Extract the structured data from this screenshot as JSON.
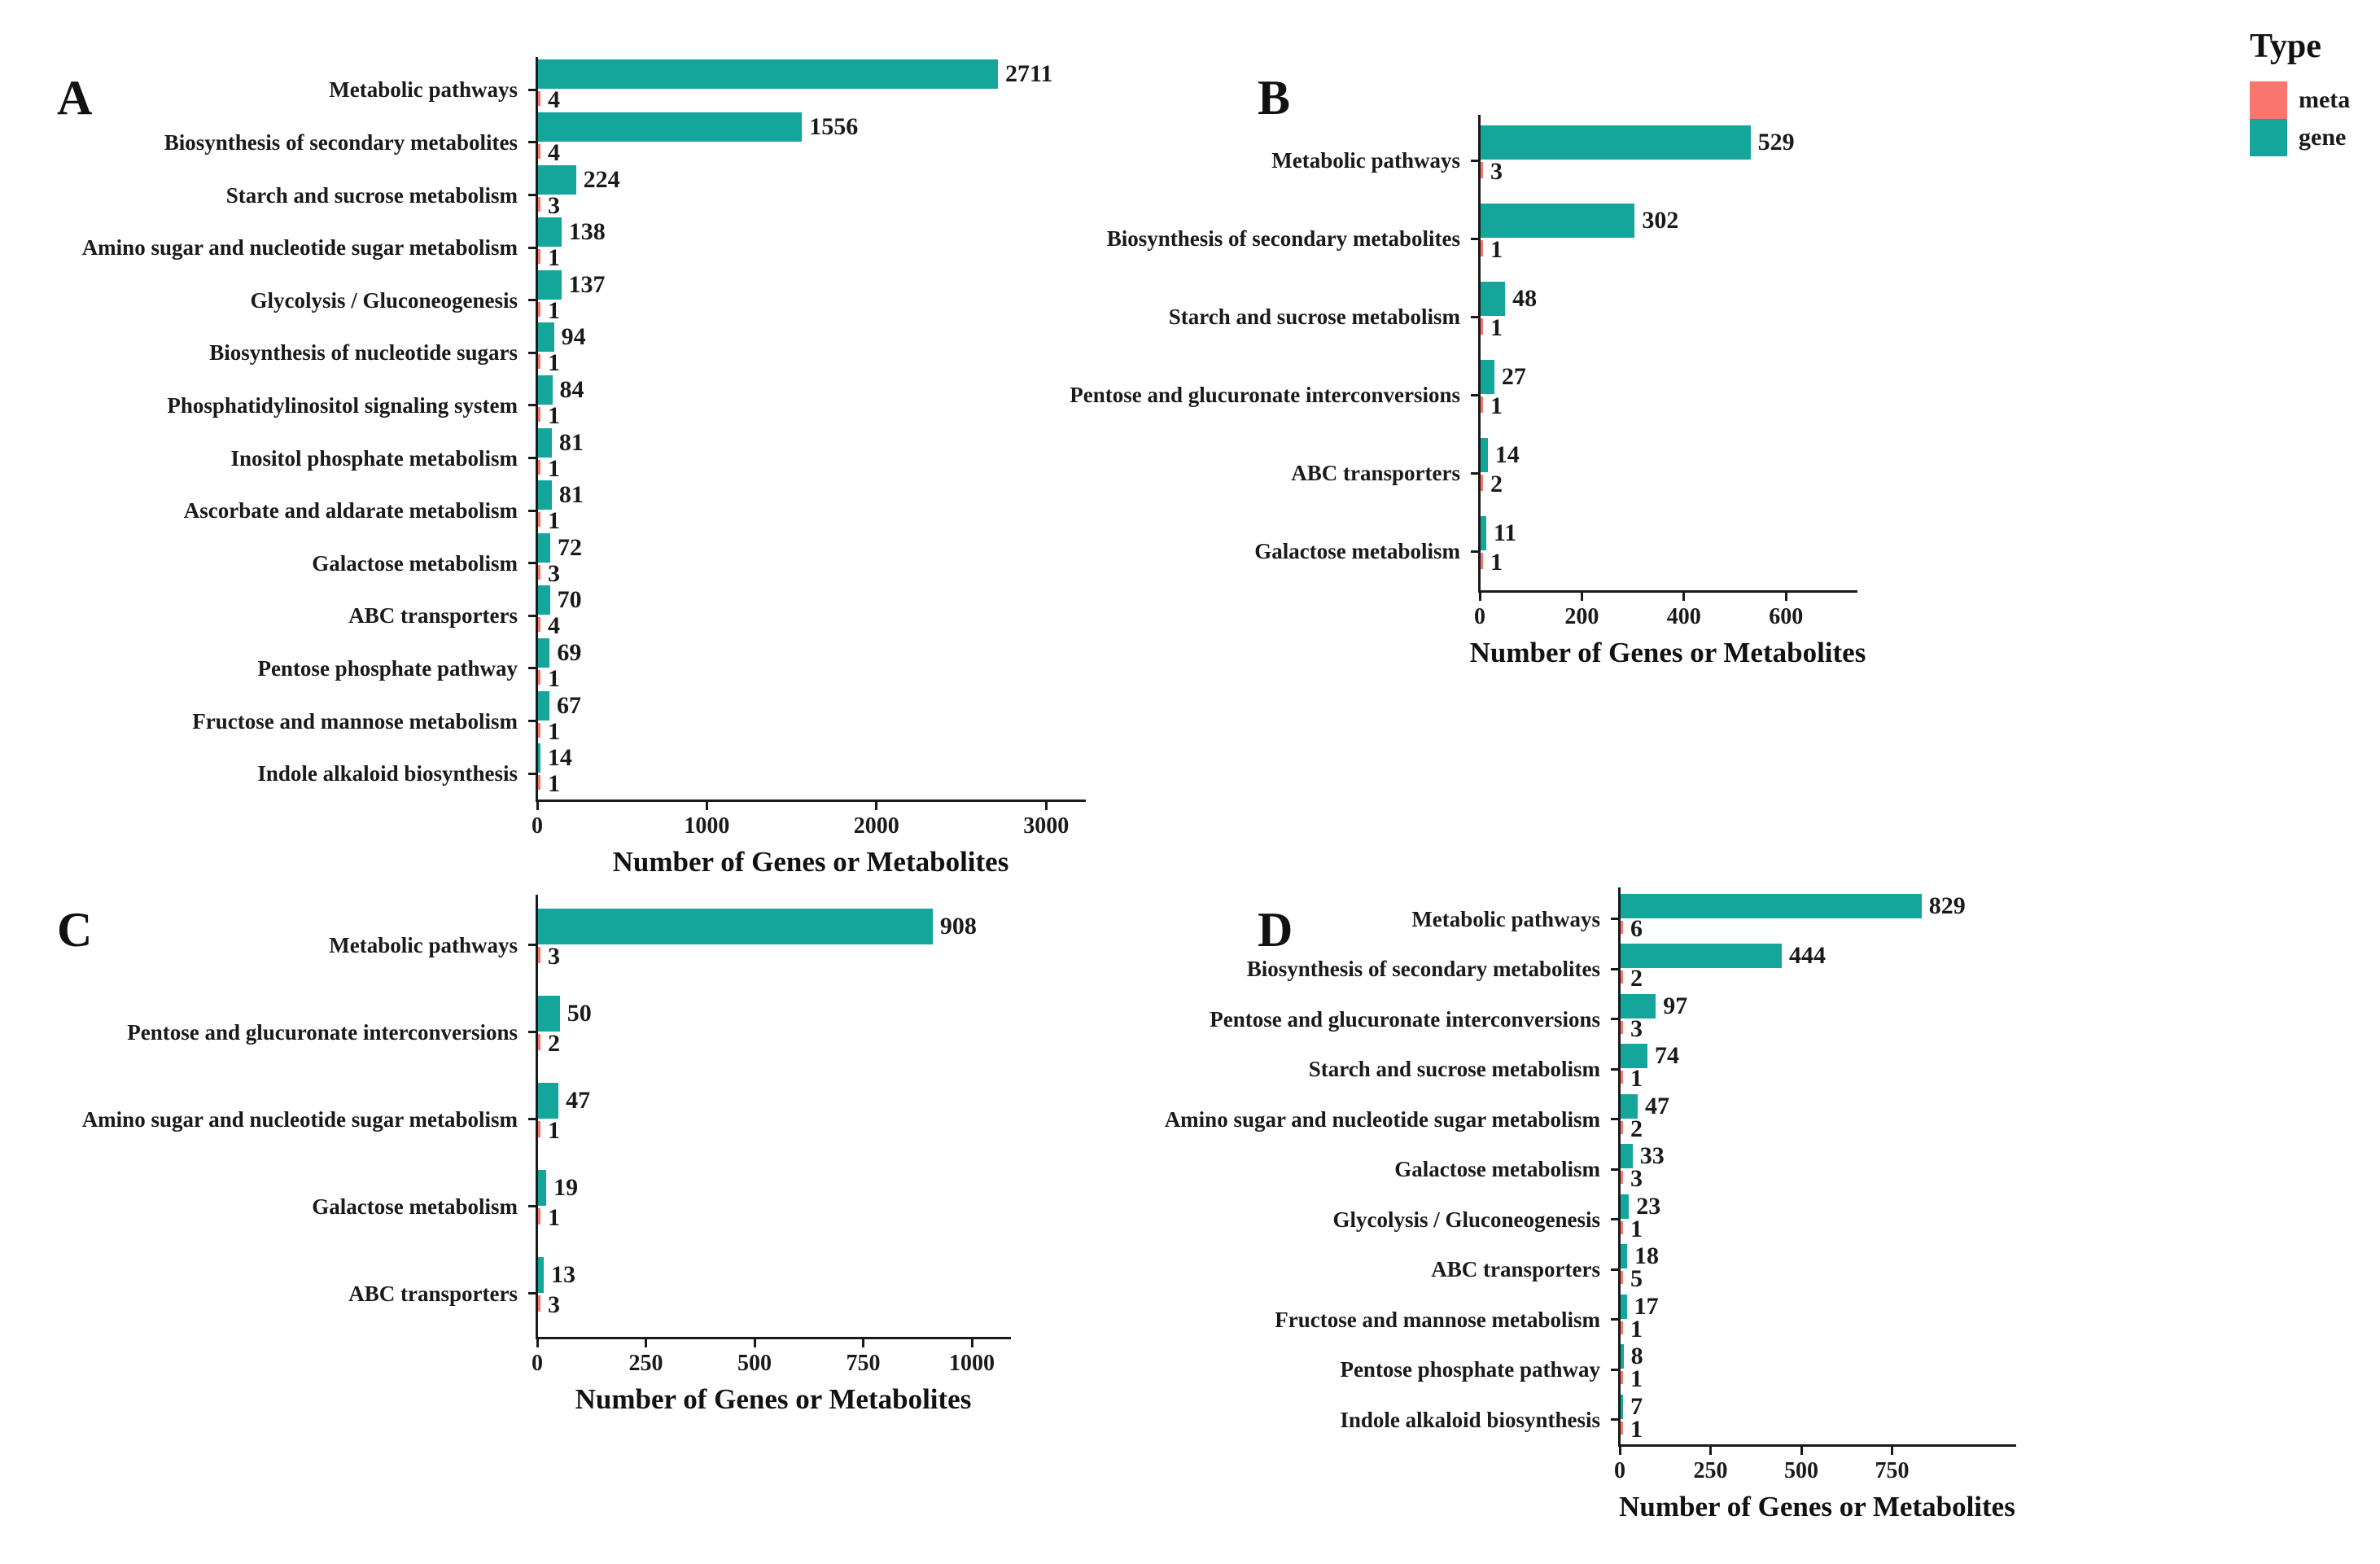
{
  "legend": {
    "title": "Type",
    "items": [
      {
        "label": "meta",
        "color": "#F8766D"
      },
      {
        "label": "gene",
        "color": "#14A59B"
      }
    ]
  },
  "axis_title": "Number of Genes or Metabolites",
  "chart_data": [
    {
      "panel": "A",
      "type": "bar",
      "orientation": "horizontal",
      "title": "A",
      "xlabel": "Number of Genes or Metabolites",
      "x_ticks": [
        0,
        1000,
        2000,
        3000
      ],
      "xlim": [
        0,
        3225
      ],
      "grid": false,
      "legend_entries": [
        "meta",
        "gene"
      ],
      "categories": [
        "Metabolic pathways",
        "Biosynthesis of secondary metabolites",
        "Starch and sucrose metabolism",
        "Amino sugar and nucleotide sugar metabolism",
        "Glycolysis / Gluconeogenesis",
        "Biosynthesis of nucleotide sugars",
        "Phosphatidylinositol signaling system",
        "Inositol phosphate metabolism",
        "Ascorbate and aldarate metabolism",
        "Galactose metabolism",
        "ABC transporters",
        "Pentose phosphate pathway",
        "Fructose and mannose metabolism",
        "Indole alkaloid biosynthesis"
      ],
      "series": [
        {
          "name": "gene",
          "values": [
            2711,
            1556,
            224,
            138,
            137,
            94,
            84,
            81,
            81,
            72,
            70,
            69,
            67,
            14
          ]
        },
        {
          "name": "meta",
          "values": [
            4,
            4,
            3,
            1,
            1,
            1,
            1,
            1,
            1,
            3,
            4,
            1,
            1,
            1
          ]
        }
      ]
    },
    {
      "panel": "B",
      "type": "bar",
      "orientation": "horizontal",
      "title": "B",
      "xlabel": "Number of Genes or Metabolites",
      "x_ticks": [
        0,
        200,
        400,
        600
      ],
      "xlim": [
        0,
        737
      ],
      "grid": false,
      "legend_entries": [
        "meta",
        "gene"
      ],
      "categories": [
        "Metabolic pathways",
        "Biosynthesis of secondary metabolites",
        "Starch and sucrose metabolism",
        "Pentose and glucuronate interconversions",
        "ABC transporters",
        "Galactose metabolism"
      ],
      "series": [
        {
          "name": "gene",
          "values": [
            529,
            302,
            48,
            27,
            14,
            11
          ]
        },
        {
          "name": "meta",
          "values": [
            3,
            1,
            1,
            1,
            2,
            1
          ]
        }
      ]
    },
    {
      "panel": "C",
      "type": "bar",
      "orientation": "horizontal",
      "title": "C",
      "xlabel": "Number of Genes or Metabolites",
      "x_ticks": [
        0,
        250,
        500,
        750,
        1000
      ],
      "xlim": [
        0,
        1086
      ],
      "grid": false,
      "legend_entries": [
        "meta",
        "gene"
      ],
      "categories": [
        "Metabolic pathways",
        "Pentose and glucuronate interconversions",
        "Amino sugar and nucleotide sugar metabolism",
        "Galactose metabolism",
        "ABC transporters"
      ],
      "series": [
        {
          "name": "gene",
          "values": [
            908,
            50,
            47,
            19,
            13
          ]
        },
        {
          "name": "meta",
          "values": [
            3,
            2,
            1,
            1,
            3
          ]
        }
      ]
    },
    {
      "panel": "D",
      "type": "bar",
      "orientation": "horizontal",
      "title": "D",
      "xlabel": "Number of Genes or Metabolites",
      "x_ticks": [
        0,
        250,
        500,
        750
      ],
      "xlim": [
        0,
        1087
      ],
      "grid": false,
      "legend_entries": [
        "meta",
        "gene"
      ],
      "categories": [
        "Metabolic pathways",
        "Biosynthesis of secondary metabolites",
        "Pentose and glucuronate interconversions",
        "Starch and sucrose metabolism",
        "Amino sugar and nucleotide sugar metabolism",
        "Galactose metabolism",
        "Glycolysis / Gluconeogenesis",
        "ABC transporters",
        "Fructose and mannose metabolism",
        "Pentose phosphate pathway",
        "Indole alkaloid biosynthesis"
      ],
      "series": [
        {
          "name": "gene",
          "values": [
            829,
            444,
            97,
            74,
            47,
            33,
            23,
            18,
            17,
            8,
            7
          ]
        },
        {
          "name": "meta",
          "values": [
            6,
            2,
            3,
            1,
            2,
            3,
            1,
            5,
            1,
            1,
            1
          ]
        }
      ]
    }
  ]
}
